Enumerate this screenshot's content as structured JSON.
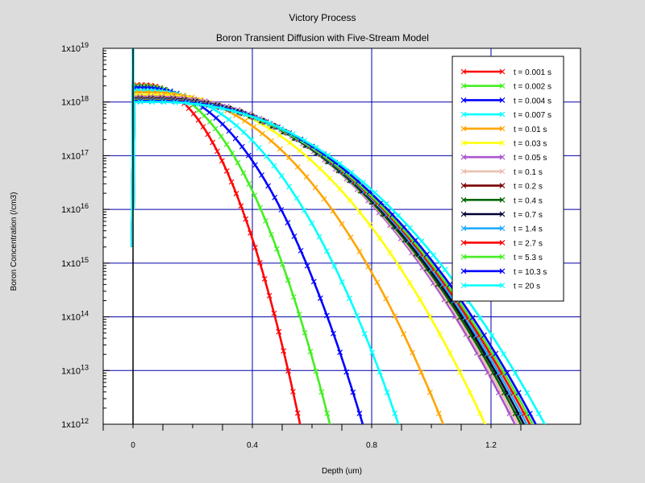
{
  "chart_data": {
    "type": "line",
    "title": "Victory Process",
    "subtitle": "Boron Transient Diffusion with Five-Stream Model",
    "xlabel": "Depth (um)",
    "ylabel": "Boron Concentration (/cm3)",
    "xlim": [
      -0.1,
      1.5
    ],
    "ylim_log10": [
      12,
      19
    ],
    "y_scale": "log",
    "x_ticks": [
      "0",
      "0.4",
      "0.8",
      "1.2"
    ],
    "x_tick_values": [
      0,
      0.4,
      0.8,
      1.2
    ],
    "y_ticks": [
      {
        "base": "1x10",
        "exp": "19",
        "value": 19
      },
      {
        "base": "1x10",
        "exp": "18",
        "value": 18
      },
      {
        "base": "1x10",
        "exp": "17",
        "value": 17
      },
      {
        "base": "1x10",
        "exp": "16",
        "value": 16
      },
      {
        "base": "1x10",
        "exp": "15",
        "value": 15
      },
      {
        "base": "1x10",
        "exp": "14",
        "value": 14
      },
      {
        "base": "1x10",
        "exp": "13",
        "value": 13
      },
      {
        "base": "1x10",
        "exp": "12",
        "value": 12
      }
    ],
    "grid": true,
    "legend_position": "top-right",
    "series": [
      {
        "name": "t = 0.001 s",
        "color": "#ff0000",
        "peak_log10": 18.32,
        "x_at_1e12": 0.56,
        "flat_x": 0.03
      },
      {
        "name": "t = 0.002 s",
        "color": "#44ee22",
        "peak_log10": 18.3,
        "x_at_1e12": 0.66,
        "flat_x": 0.03
      },
      {
        "name": "t = 0.004 s",
        "color": "#0000ff",
        "peak_log10": 18.27,
        "x_at_1e12": 0.77,
        "flat_x": 0.03
      },
      {
        "name": "t = 0.007 s",
        "color": "#00ffff",
        "peak_log10": 18.22,
        "x_at_1e12": 0.89,
        "flat_x": 0.04
      },
      {
        "name": "t = 0.01 s",
        "color": "#ffa500",
        "peak_log10": 18.18,
        "x_at_1e12": 1.04,
        "flat_x": 0.05
      },
      {
        "name": "t = 0.03 s",
        "color": "#ffff00",
        "peak_log10": 18.13,
        "x_at_1e12": 1.18,
        "flat_x": 0.06
      },
      {
        "name": "t = 0.05 s",
        "color": "#aa55cc",
        "peak_log10": 18.1,
        "x_at_1e12": 1.28,
        "flat_x": 0.07
      },
      {
        "name": "t = 0.1 s",
        "color": "#e8bfb0",
        "peak_log10": 18.08,
        "x_at_1e12": 1.29,
        "flat_x": 0.07
      },
      {
        "name": "t = 0.2 s",
        "color": "#7a0000",
        "peak_log10": 18.07,
        "x_at_1e12": 1.3,
        "flat_x": 0.07
      },
      {
        "name": "t = 0.4 s",
        "color": "#006600",
        "peak_log10": 18.06,
        "x_at_1e12": 1.3,
        "flat_x": 0.07
      },
      {
        "name": "t = 0.7 s",
        "color": "#000033",
        "peak_log10": 18.06,
        "x_at_1e12": 1.31,
        "flat_x": 0.07
      },
      {
        "name": "t = 1.4 s",
        "color": "#22aaff",
        "peak_log10": 18.05,
        "x_at_1e12": 1.32,
        "flat_x": 0.07
      },
      {
        "name": "t = 2.7 s",
        "color": "#ff0000",
        "peak_log10": 18.04,
        "x_at_1e12": 1.33,
        "flat_x": 0.07
      },
      {
        "name": "t = 5.3 s",
        "color": "#44ee22",
        "peak_log10": 18.03,
        "x_at_1e12": 1.34,
        "flat_x": 0.07
      },
      {
        "name": "t = 10.3 s",
        "color": "#0000ff",
        "peak_log10": 18.02,
        "x_at_1e12": 1.35,
        "flat_x": 0.08
      },
      {
        "name": "t = 20 s",
        "color": "#00ffff",
        "peak_log10": 18.0,
        "x_at_1e12": 1.38,
        "flat_x": 0.08
      }
    ]
  }
}
